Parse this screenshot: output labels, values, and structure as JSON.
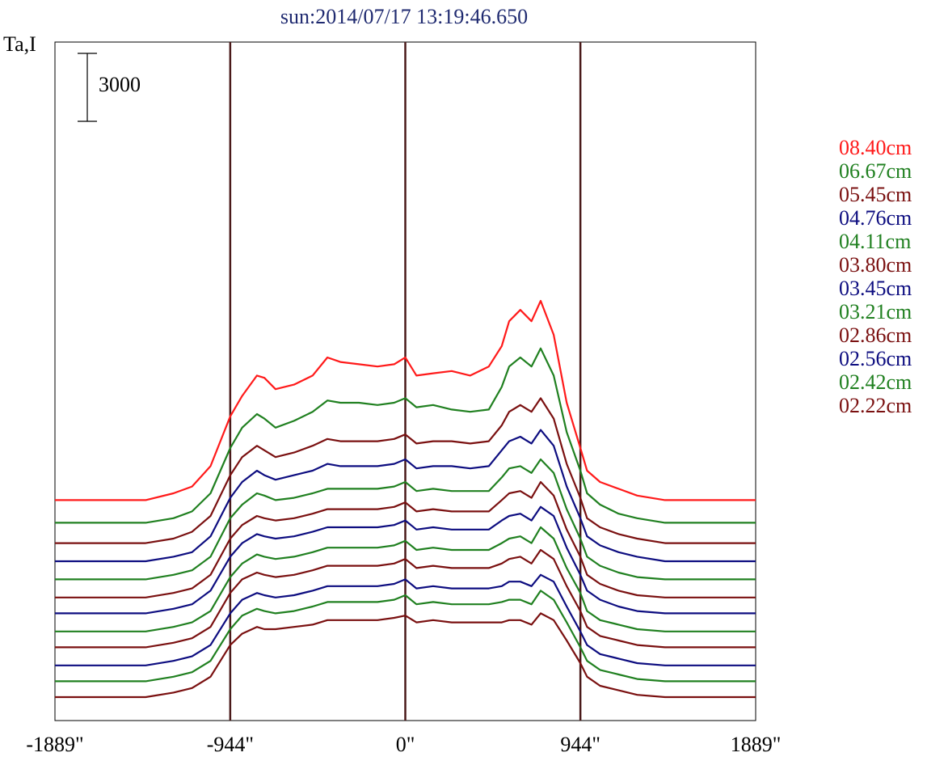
{
  "chart_data": {
    "type": "line",
    "title": "sun:2014/07/17 13:19:46.650",
    "ylabel": "Ta,I",
    "scale_bar": {
      "label": "3000",
      "value": 3000
    },
    "xlim": [
      -1889,
      1889
    ],
    "x_tick_labels": [
      "-1889\"",
      "-944\"",
      "0\"",
      "944\"",
      "1889\""
    ],
    "x_ticks": [
      -1889,
      -944,
      0,
      944,
      1889
    ],
    "vertical_lines": [
      -944,
      0,
      944
    ],
    "legend_position": "right",
    "grid": false,
    "x": [
      -1889,
      -1600,
      -1400,
      -1250,
      -1150,
      -1050,
      -944,
      -880,
      -800,
      -760,
      -700,
      -600,
      -500,
      -420,
      -350,
      -250,
      -150,
      -60,
      0,
      60,
      150,
      250,
      350,
      450,
      520,
      560,
      620,
      680,
      730,
      800,
      870,
      944,
      980,
      1050,
      1150,
      1250,
      1400,
      1600,
      1889
    ],
    "series": [
      {
        "name": "08.40cm",
        "color": "#ff1a1a",
        "offset": 8700,
        "values": [
          0,
          0,
          0,
          300,
          600,
          1500,
          3700,
          4600,
          5500,
          5400,
          4900,
          5100,
          5500,
          6300,
          6100,
          6000,
          5900,
          6000,
          6300,
          5500,
          5600,
          5700,
          5500,
          5900,
          6800,
          7900,
          8400,
          7900,
          8800,
          7300,
          4300,
          2300,
          1300,
          800,
          500,
          200,
          0,
          0,
          0
        ]
      },
      {
        "name": "06.67cm",
        "color": "#208020",
        "offset": 7700,
        "values": [
          0,
          0,
          0,
          200,
          500,
          1300,
          3300,
          4200,
          4800,
          4600,
          4200,
          4500,
          4900,
          5400,
          5300,
          5300,
          5200,
          5300,
          5500,
          5100,
          5200,
          5000,
          4900,
          5000,
          6000,
          6900,
          7300,
          6900,
          7700,
          6500,
          4000,
          2300,
          1300,
          800,
          400,
          200,
          0,
          0,
          0
        ]
      },
      {
        "name": "05.45cm",
        "color": "#7a1010",
        "offset": 6800,
        "values": [
          0,
          0,
          0,
          200,
          500,
          1200,
          3000,
          3800,
          4300,
          4100,
          3800,
          4000,
          4300,
          4600,
          4500,
          4500,
          4500,
          4600,
          4800,
          4400,
          4500,
          4500,
          4400,
          4500,
          5200,
          5800,
          6100,
          5800,
          6400,
          5500,
          3500,
          2000,
          1100,
          700,
          400,
          200,
          0,
          0,
          0
        ]
      },
      {
        "name": "04.76cm",
        "color": "#0d0d80",
        "offset": 6000,
        "values": [
          0,
          0,
          0,
          200,
          400,
          1100,
          2800,
          3500,
          4000,
          3800,
          3600,
          3800,
          4000,
          4300,
          4200,
          4200,
          4200,
          4300,
          4500,
          4100,
          4200,
          4200,
          4100,
          4200,
          4900,
          5300,
          5500,
          5200,
          5800,
          5100,
          3300,
          1900,
          1100,
          700,
          400,
          200,
          0,
          0,
          0
        ]
      },
      {
        "name": "04.11cm",
        "color": "#208020",
        "offset": 5200,
        "values": [
          0,
          0,
          0,
          200,
          400,
          1000,
          2700,
          3300,
          3800,
          3700,
          3500,
          3600,
          3800,
          4000,
          4000,
          4000,
          4000,
          4100,
          4300,
          3900,
          4000,
          3900,
          3900,
          3900,
          4500,
          4900,
          5000,
          4700,
          5300,
          4700,
          3100,
          1800,
          1000,
          600,
          300,
          100,
          0,
          0,
          0
        ]
      },
      {
        "name": "03.80cm",
        "color": "#7a1010",
        "offset": 4400,
        "values": [
          0,
          0,
          0,
          200,
          400,
          1000,
          2600,
          3200,
          3600,
          3500,
          3400,
          3500,
          3700,
          3900,
          3900,
          3900,
          3900,
          4000,
          4200,
          3800,
          3900,
          3800,
          3800,
          3800,
          4300,
          4600,
          4700,
          4400,
          5100,
          4500,
          3000,
          1800,
          1000,
          600,
          300,
          100,
          0,
          0,
          0
        ]
      },
      {
        "name": "03.45cm",
        "color": "#0d0d80",
        "offset": 3700,
        "values": [
          0,
          0,
          0,
          200,
          400,
          1000,
          2500,
          3100,
          3500,
          3400,
          3300,
          3400,
          3600,
          3800,
          3800,
          3800,
          3800,
          3900,
          4100,
          3700,
          3800,
          3700,
          3700,
          3700,
          4100,
          4300,
          4400,
          4100,
          4700,
          4300,
          2900,
          1700,
          1000,
          600,
          300,
          100,
          0,
          0,
          0
        ]
      },
      {
        "name": "03.21cm",
        "color": "#208020",
        "offset": 2900,
        "values": [
          0,
          0,
          0,
          200,
          400,
          900,
          2400,
          3000,
          3400,
          3300,
          3200,
          3300,
          3500,
          3700,
          3700,
          3700,
          3700,
          3800,
          4000,
          3600,
          3700,
          3600,
          3600,
          3600,
          3900,
          4100,
          4200,
          3900,
          4600,
          4100,
          2800,
          1700,
          900,
          500,
          300,
          100,
          0,
          0,
          0
        ]
      },
      {
        "name": "02.86cm",
        "color": "#7a1010",
        "offset": 2200,
        "values": [
          0,
          0,
          0,
          200,
          400,
          900,
          2400,
          3000,
          3300,
          3200,
          3100,
          3200,
          3400,
          3600,
          3600,
          3600,
          3600,
          3700,
          3900,
          3500,
          3600,
          3500,
          3500,
          3500,
          3700,
          3900,
          4000,
          3700,
          4300,
          3900,
          2700,
          1600,
          900,
          500,
          300,
          100,
          0,
          0,
          0
        ]
      },
      {
        "name": "02.56cm",
        "color": "#0d0d80",
        "offset": 1400,
        "values": [
          0,
          0,
          0,
          200,
          400,
          900,
          2300,
          2900,
          3200,
          3100,
          3000,
          3100,
          3300,
          3500,
          3500,
          3500,
          3500,
          3600,
          3800,
          3400,
          3500,
          3400,
          3400,
          3400,
          3500,
          3700,
          3700,
          3500,
          4000,
          3700,
          2600,
          1500,
          900,
          500,
          300,
          100,
          0,
          0,
          0
        ]
      },
      {
        "name": "02.42cm",
        "color": "#208020",
        "offset": 700,
        "values": [
          0,
          0,
          0,
          200,
          400,
          900,
          2300,
          2900,
          3200,
          3100,
          3000,
          3100,
          3300,
          3500,
          3500,
          3500,
          3500,
          3600,
          3800,
          3400,
          3500,
          3400,
          3400,
          3400,
          3500,
          3600,
          3600,
          3400,
          4000,
          3600,
          2600,
          1500,
          900,
          500,
          300,
          100,
          0,
          0,
          0
        ]
      },
      {
        "name": "02.22cm",
        "color": "#7a1010",
        "offset": 0,
        "values": [
          0,
          0,
          0,
          200,
          400,
          900,
          2300,
          2800,
          3100,
          3000,
          3000,
          3100,
          3200,
          3400,
          3400,
          3400,
          3400,
          3500,
          3600,
          3300,
          3400,
          3300,
          3300,
          3300,
          3300,
          3400,
          3400,
          3200,
          3700,
          3400,
          2500,
          1500,
          900,
          500,
          300,
          100,
          0,
          0,
          0
        ]
      }
    ]
  }
}
